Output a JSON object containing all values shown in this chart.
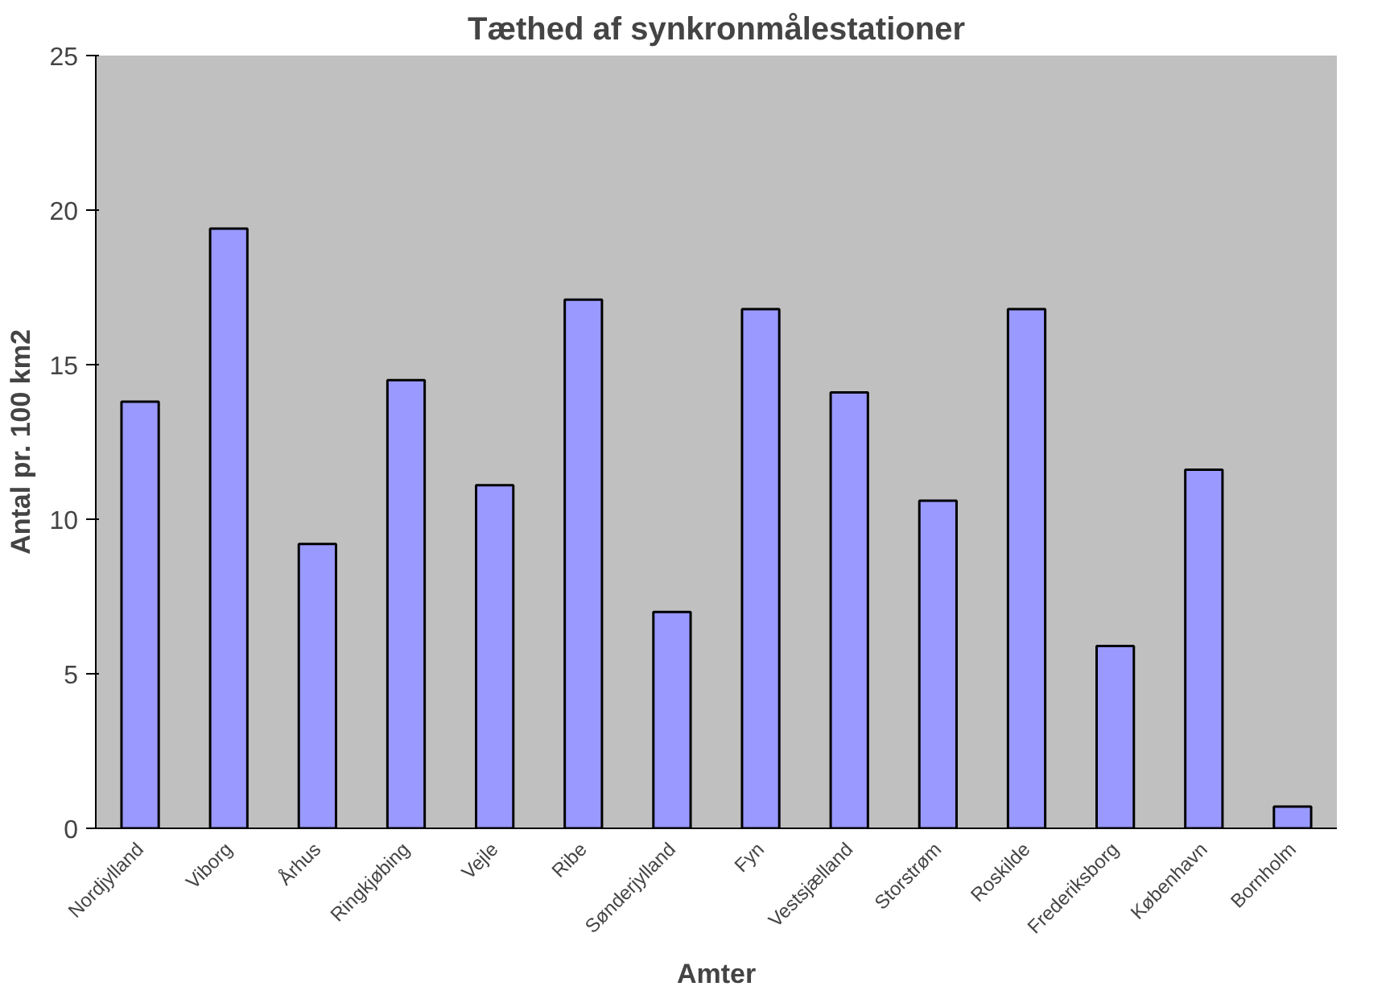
{
  "chart_data": {
    "type": "bar",
    "title": "Tæthed af synkronmålestationer",
    "xlabel": "Amter",
    "ylabel": "Antal pr. 100 km2",
    "categories": [
      "Nordjylland",
      "Viborg",
      "Århus",
      "Ringkjøbing",
      "Vejle",
      "Ribe",
      "Sønderjylland",
      "Fyn",
      "Vestsjælland",
      "Storstrøm",
      "Roskilde",
      "Frederiksborg",
      "København",
      "Bornholm"
    ],
    "values": [
      13.8,
      19.4,
      9.2,
      14.5,
      11.1,
      17.1,
      7.0,
      16.8,
      14.1,
      10.6,
      16.8,
      5.9,
      11.6,
      0.7
    ],
    "color": "#9999ff",
    "ylim": [
      0,
      25
    ],
    "yticks": [
      0,
      5,
      10,
      15,
      20,
      25
    ],
    "grid": false
  }
}
